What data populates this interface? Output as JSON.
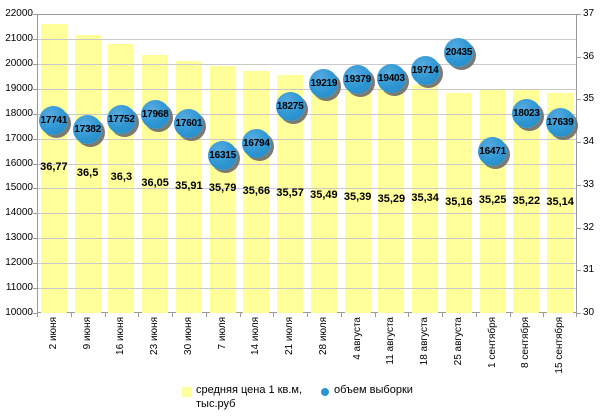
{
  "chart_data": {
    "type": "bar",
    "subtype": "combo-bar-and-points",
    "title": "",
    "categories": [
      "2 июня",
      "9 июня",
      "16 июня",
      "23 июня",
      "30 июня",
      "7 июля",
      "14 июля",
      "21 июля",
      "28 июля",
      "4 августа",
      "11 августа",
      "18 августа",
      "25 августа",
      "1 сентября",
      "8 сентября",
      "15 сентября"
    ],
    "series": [
      {
        "name": "средняя цена 1 кв.м, тыс.руб",
        "type": "bar",
        "axis": "right",
        "values": [
          36.77,
          36.5,
          36.3,
          36.05,
          35.91,
          35.79,
          35.66,
          35.57,
          35.49,
          35.39,
          35.29,
          35.34,
          35.16,
          35.25,
          35.22,
          35.14
        ],
        "labels": [
          "36,77",
          "36,5",
          "36,3",
          "36,05",
          "35,91",
          "35,79",
          "35,66",
          "35,57",
          "35,49",
          "35,39",
          "35,29",
          "35,34",
          "35,16",
          "35,25",
          "35,22",
          "35,14"
        ],
        "color": "#ffff99"
      },
      {
        "name": "объем выборки",
        "type": "point",
        "axis": "left",
        "values": [
          17741,
          17382,
          17752,
          17968,
          17601,
          16315,
          16794,
          18275,
          19219,
          19379,
          19403,
          19714,
          20435,
          16471,
          18023,
          17639
        ],
        "labels": [
          "17741",
          "17382",
          "17752",
          "17968",
          "17601",
          "16315",
          "16794",
          "18275",
          "19219",
          "19379",
          "19403",
          "19714",
          "20435",
          "16471",
          "18023",
          "17639"
        ],
        "color": "#2d96d2"
      }
    ],
    "left_axis": {
      "min": 10000,
      "max": 22000,
      "step": 1000,
      "tick_labels": [
        "22000",
        "21000",
        "20000",
        "19000",
        "18000",
        "17000",
        "16000",
        "15000",
        "14000",
        "13000",
        "12000",
        "11000",
        "10000"
      ]
    },
    "right_axis": {
      "min": 30,
      "max": 37,
      "step": 1,
      "tick_labels": [
        "37",
        "36",
        "35",
        "34",
        "33",
        "32",
        "31",
        "30"
      ]
    },
    "grid": "horizontal gridlines at every 1000 of left axis",
    "legend_position": "bottom-center"
  },
  "legend": {
    "bar_series_line1": "средняя цена 1 кв.м,",
    "bar_series_line2": "тыс.руб",
    "point_series": "объем выборки"
  },
  "colors": {
    "bar_fill": "#ffff99",
    "point_fill": "#2d96d2",
    "point_shadow": "#6c6c6c",
    "gridline": "#c9c9c9",
    "frame": "#9a9a9a",
    "text": "#000000",
    "background": "#ffffff"
  }
}
